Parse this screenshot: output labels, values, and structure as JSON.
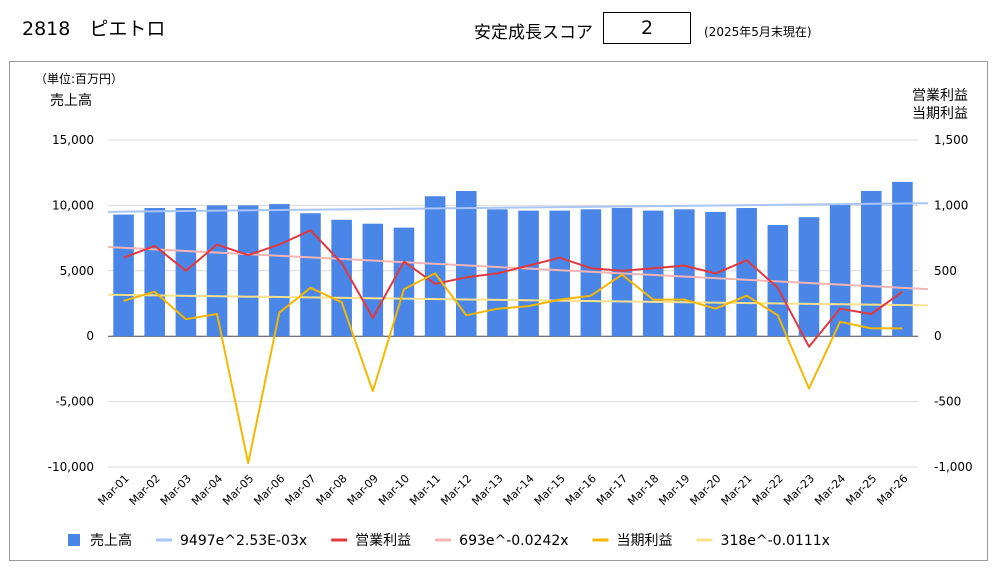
{
  "header": {
    "code_name": "2818　ピエトロ",
    "score_label": "安定成長スコア",
    "score_value": "2",
    "as_of": "(2025年5月末現在)"
  },
  "chart_data": {
    "type": "bar",
    "unit_note": "（単位:百万円）",
    "ylabel_left": "売上高",
    "ylabel_right_1": "営業利益",
    "ylabel_right_2": "当期利益",
    "ylim_left": [
      -10000,
      15000
    ],
    "ylim_right": [
      -1000,
      1500
    ],
    "yticks_left": [
      "-10,000",
      "-5,000",
      "0",
      "5,000",
      "10,000",
      "15,000"
    ],
    "yticks_right": [
      "-1,000",
      "-500",
      "0",
      "500",
      "1,000",
      "1,500"
    ],
    "grid": true,
    "legend_position": "bottom",
    "categories": [
      "Mar-01",
      "Mar-02",
      "Mar-03",
      "Mar-04",
      "Mar-05",
      "Mar-06",
      "Mar-07",
      "Mar-08",
      "Mar-09",
      "Mar-10",
      "Mar-11",
      "Mar-12",
      "Mar-13",
      "Mar-14",
      "Mar-15",
      "Mar-16",
      "Mar-17",
      "Mar-18",
      "Mar-19",
      "Mar-20",
      "Mar-21",
      "Mar-22",
      "Mar-23",
      "Mar-24",
      "Mar-25",
      "Mar-26"
    ],
    "series": [
      {
        "name": "売上高",
        "type": "bar",
        "axis": "left",
        "color": "#4a86e8",
        "values": [
          9300,
          9800,
          9800,
          10000,
          10000,
          10100,
          9400,
          8900,
          8600,
          8300,
          10700,
          11100,
          9700,
          9600,
          9600,
          9700,
          9800,
          9600,
          9700,
          9500,
          9800,
          8500,
          9100,
          10100,
          11100,
          11800
        ]
      },
      {
        "name": "9497e^2.53E-03x",
        "type": "trend",
        "axis": "left",
        "color": "#a9c4f5",
        "values": [
          9521,
          9545,
          9569,
          9593,
          9617,
          9642,
          9666,
          9691,
          9715,
          9740,
          9764,
          9789,
          9814,
          9839,
          9864,
          9889,
          9914,
          9939,
          9964,
          9989,
          10014,
          10040,
          10065,
          10091,
          10116,
          10142
        ]
      },
      {
        "name": "営業利益",
        "type": "line",
        "axis": "right",
        "color": "#e0393e",
        "values": [
          600,
          690,
          500,
          700,
          620,
          700,
          810,
          560,
          140,
          570,
          400,
          450,
          480,
          540,
          600,
          520,
          500,
          520,
          540,
          480,
          580,
          370,
          -80,
          210,
          170,
          340
        ]
      },
      {
        "name": "693e^-0.0242x",
        "type": "trend",
        "axis": "right",
        "color": "#f4b4b4",
        "values": [
          676,
          660,
          645,
          629,
          614,
          600,
          585,
          571,
          558,
          544,
          531,
          519,
          506,
          494,
          483,
          471,
          460,
          449,
          438,
          428,
          418,
          408,
          398,
          389,
          379,
          370
        ]
      },
      {
        "name": "当期利益",
        "type": "line",
        "axis": "right",
        "color": "#f5b800",
        "values": [
          270,
          340,
          130,
          170,
          -970,
          180,
          370,
          260,
          -420,
          360,
          480,
          160,
          210,
          230,
          280,
          310,
          470,
          280,
          280,
          210,
          310,
          160,
          -400,
          110,
          60,
          60
        ]
      },
      {
        "name": "318e^-0.0111x",
        "type": "trend",
        "axis": "right",
        "color": "#fbe08c",
        "values": [
          315,
          311,
          308,
          304,
          301,
          298,
          294,
          291,
          288,
          285,
          281,
          278,
          275,
          272,
          269,
          266,
          263,
          260,
          257,
          254,
          251,
          249,
          246,
          243,
          240,
          238
        ]
      }
    ]
  }
}
